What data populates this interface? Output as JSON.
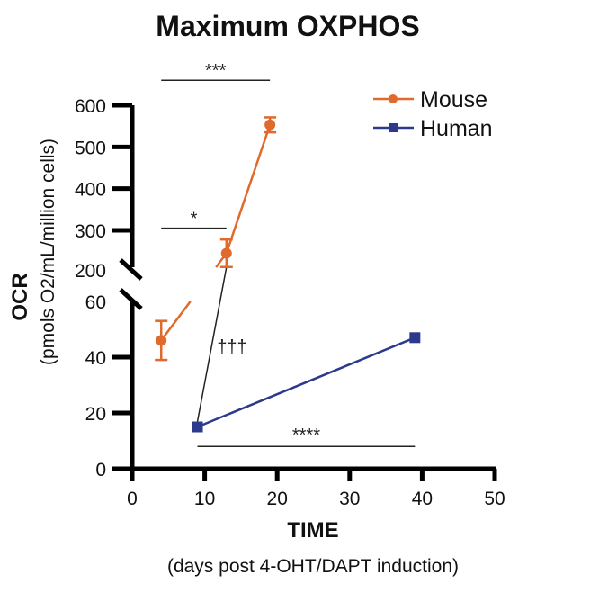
{
  "chart_data": {
    "type": "line",
    "title": "Maximum OXPHOS",
    "xlabel": "TIME",
    "xlabel_sub": "(days post 4-OHT/DAPT induction)",
    "ylabel": "OCR",
    "ylabel_sub": "(pmols O2/mL/million cells)",
    "xlim": [
      0,
      50
    ],
    "x_ticks": [
      "0",
      "10",
      "20",
      "30",
      "40",
      "50"
    ],
    "y_axis_broken": true,
    "ylim_lower": [
      0,
      60
    ],
    "ylim_upper": [
      200,
      600
    ],
    "y_ticks_lower": [
      "0",
      "20",
      "40",
      "60"
    ],
    "y_ticks_upper": [
      "200",
      "300",
      "400",
      "500",
      "600"
    ],
    "legend_position": "top-right",
    "series": [
      {
        "name": "Mouse",
        "color": "#e0692c",
        "marker": "circle",
        "x": [
          4,
          13,
          19
        ],
        "y": [
          46,
          245,
          553
        ],
        "err": [
          7,
          33,
          18
        ]
      },
      {
        "name": "Human",
        "color": "#2c3a8c",
        "marker": "square",
        "x": [
          9,
          39
        ],
        "y": [
          15,
          47
        ],
        "err": [
          0,
          0
        ]
      }
    ],
    "annotations": [
      {
        "label": "***",
        "from_x": 4,
        "to_x": 19,
        "level": "upper",
        "y": 660
      },
      {
        "label": "*",
        "from_x": 4,
        "to_x": 13,
        "level": "upper",
        "y": 305
      },
      {
        "label": "†††",
        "between": "Mouse day 13 and Human day 9"
      },
      {
        "label": "****",
        "from_x": 9,
        "to_x": 39,
        "level": "lower",
        "y": 8
      }
    ]
  }
}
